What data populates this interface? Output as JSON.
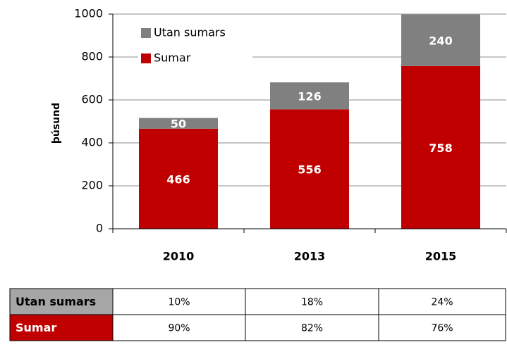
{
  "chart_data": {
    "type": "stacked-bar",
    "y_label": "þúsund",
    "categories": [
      "2010",
      "2013",
      "2015"
    ],
    "series": [
      {
        "name": "Sumar",
        "color": "#c00000",
        "values": [
          466,
          556,
          758
        ]
      },
      {
        "name": "Utan sumars",
        "color": "#808080",
        "values": [
          50,
          126,
          240
        ]
      }
    ],
    "ylim": [
      0,
      1000
    ],
    "yticks": [
      0,
      200,
      400,
      600,
      800,
      1000
    ],
    "grid": true,
    "legend": "upper-left",
    "table": {
      "rows": [
        {
          "label": "Utan sumars",
          "color": "#a6a6a6",
          "cells": [
            "10%",
            "18%",
            "24%"
          ]
        },
        {
          "label": "Sumar",
          "color": "#c00000",
          "cells": [
            "90%",
            "82%",
            "76%"
          ]
        }
      ]
    }
  }
}
